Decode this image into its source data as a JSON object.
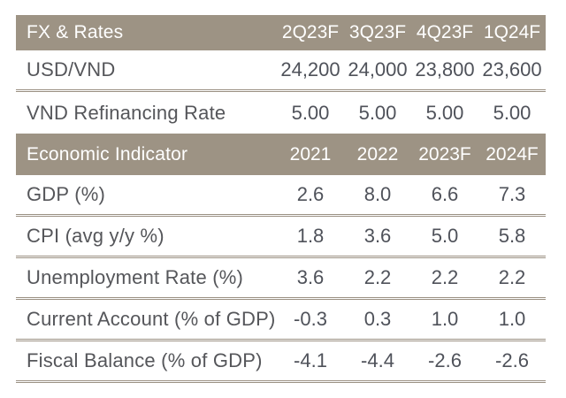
{
  "page": {
    "background": "#ffffff",
    "accent_color": "#9d9384",
    "rule_color": "#9a9082",
    "header_text_color": "#ffffff",
    "label_text_color": "#55565a",
    "value_text_color": "#4f525a"
  },
  "table": {
    "sections": [
      {
        "header": {
          "label": "FX & Rates",
          "columns": [
            "2Q23F",
            "3Q23F",
            "4Q23F",
            "1Q24F"
          ]
        },
        "rows": [
          {
            "label": "USD/VND",
            "values": [
              "24,200",
              "24,000",
              "23,800",
              "23,600"
            ]
          },
          {
            "label": "VND Refinancing Rate",
            "values": [
              "5.00",
              "5.00",
              "5.00",
              "5.00"
            ]
          }
        ]
      },
      {
        "header": {
          "label": "Economic Indicator",
          "columns": [
            "2021",
            "2022",
            "2023F",
            "2024F"
          ]
        },
        "rows": [
          {
            "label": "GDP (%)",
            "values": [
              "2.6",
              "8.0",
              "6.6",
              "7.3"
            ]
          },
          {
            "label": "CPI (avg y/y %)",
            "values": [
              "1.8",
              "3.6",
              "5.0",
              "5.8"
            ]
          },
          {
            "label": "Unemployment Rate (%)",
            "values": [
              "3.6",
              "2.2",
              "2.2",
              "2.2"
            ]
          },
          {
            "label": "Current Account (% of GDP)",
            "values": [
              "-0.3",
              "0.3",
              "1.0",
              "1.0"
            ]
          },
          {
            "label": "Fiscal Balance (% of GDP)",
            "values": [
              "-4.1",
              "-4.4",
              "-2.6",
              "-2.6"
            ]
          }
        ]
      }
    ]
  },
  "chart_data": [
    {
      "type": "table",
      "title": "FX & Rates",
      "columns": [
        "2Q23F",
        "3Q23F",
        "4Q23F",
        "1Q24F"
      ],
      "rows": [
        {
          "label": "USD/VND",
          "values": [
            24200,
            24000,
            23800,
            23600
          ]
        },
        {
          "label": "VND Refinancing Rate",
          "values": [
            5.0,
            5.0,
            5.0,
            5.0
          ]
        }
      ]
    },
    {
      "type": "table",
      "title": "Economic Indicator",
      "columns": [
        "2021",
        "2022",
        "2023F",
        "2024F"
      ],
      "rows": [
        {
          "label": "GDP (%)",
          "values": [
            2.6,
            8.0,
            6.6,
            7.3
          ]
        },
        {
          "label": "CPI (avg y/y %)",
          "values": [
            1.8,
            3.6,
            5.0,
            5.8
          ]
        },
        {
          "label": "Unemployment Rate (%)",
          "values": [
            3.6,
            2.2,
            2.2,
            2.2
          ]
        },
        {
          "label": "Current Account (% of GDP)",
          "values": [
            -0.3,
            0.3,
            1.0,
            1.0
          ]
        },
        {
          "label": "Fiscal Balance (% of GDP)",
          "values": [
            -4.1,
            -4.4,
            -2.6,
            -2.6
          ]
        }
      ]
    }
  ]
}
